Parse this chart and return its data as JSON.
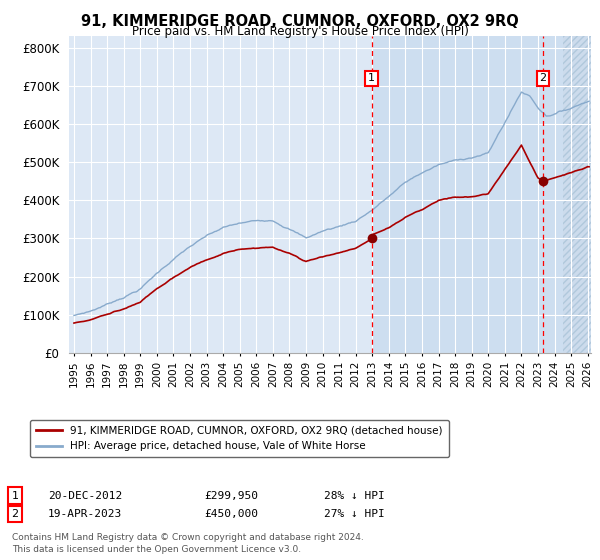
{
  "title": "91, KIMMERIDGE ROAD, CUMNOR, OXFORD, OX2 9RQ",
  "subtitle": "Price paid vs. HM Land Registry's House Price Index (HPI)",
  "legend_line1": "91, KIMMERIDGE ROAD, CUMNOR, OXFORD, OX2 9RQ (detached house)",
  "legend_line2": "HPI: Average price, detached house, Vale of White Horse",
  "annotation1_date": "20-DEC-2012",
  "annotation1_price": "£299,950",
  "annotation1_hpi": "28% ↓ HPI",
  "annotation1_year": 2012.97,
  "annotation1_value": 299950,
  "annotation2_date": "19-APR-2023",
  "annotation2_price": "£450,000",
  "annotation2_hpi": "27% ↓ HPI",
  "annotation2_year": 2023.3,
  "annotation2_value": 450000,
  "hpi_color": "#88aacc",
  "price_color": "#aa0000",
  "bg_color": "#dde8f5",
  "shade_color": "#ccddf0",
  "footer": "Contains HM Land Registry data © Crown copyright and database right 2024.\nThis data is licensed under the Open Government Licence v3.0.",
  "ylim": [
    0,
    830000
  ],
  "yticks": [
    0,
    100000,
    200000,
    300000,
    400000,
    500000,
    600000,
    700000,
    800000
  ],
  "ytick_labels": [
    "£0",
    "£100K",
    "£200K",
    "£300K",
    "£400K",
    "£500K",
    "£600K",
    "£700K",
    "£800K"
  ],
  "hpi_keypoints_x": [
    1995,
    1996,
    1997,
    1998,
    1999,
    2000,
    2001,
    2002,
    2003,
    2004,
    2005,
    2006,
    2007,
    2008,
    2009,
    2010,
    2011,
    2012,
    2013,
    2014,
    2015,
    2016,
    2017,
    2018,
    2019,
    2020,
    2021,
    2022,
    2022.5,
    2023,
    2023.5,
    2024,
    2025,
    2026
  ],
  "hpi_keypoints_y": [
    98000,
    110000,
    128000,
    148000,
    170000,
    210000,
    248000,
    280000,
    305000,
    325000,
    335000,
    340000,
    345000,
    325000,
    300000,
    318000,
    330000,
    345000,
    375000,
    410000,
    445000,
    470000,
    490000,
    500000,
    510000,
    520000,
    600000,
    680000,
    670000,
    640000,
    620000,
    625000,
    640000,
    660000
  ],
  "price_keypoints_x": [
    1995,
    1996,
    1997,
    1998,
    1999,
    2000,
    2001,
    2002,
    2003,
    2004,
    2005,
    2006,
    2007,
    2008,
    2009,
    2010,
    2011,
    2012,
    2012.97,
    2013,
    2014,
    2015,
    2016,
    2017,
    2018,
    2019,
    2020,
    2021,
    2022,
    2022.5,
    2023,
    2023.3,
    2024,
    2025,
    2026
  ],
  "price_keypoints_y": [
    78000,
    88000,
    102000,
    118000,
    135000,
    168000,
    198000,
    224000,
    244000,
    260000,
    268000,
    272000,
    276000,
    260000,
    240000,
    254000,
    264000,
    276000,
    299950,
    310000,
    328000,
    356000,
    376000,
    400000,
    408000,
    408000,
    416000,
    480000,
    544000,
    500000,
    460000,
    450000,
    460000,
    472000,
    488000
  ]
}
